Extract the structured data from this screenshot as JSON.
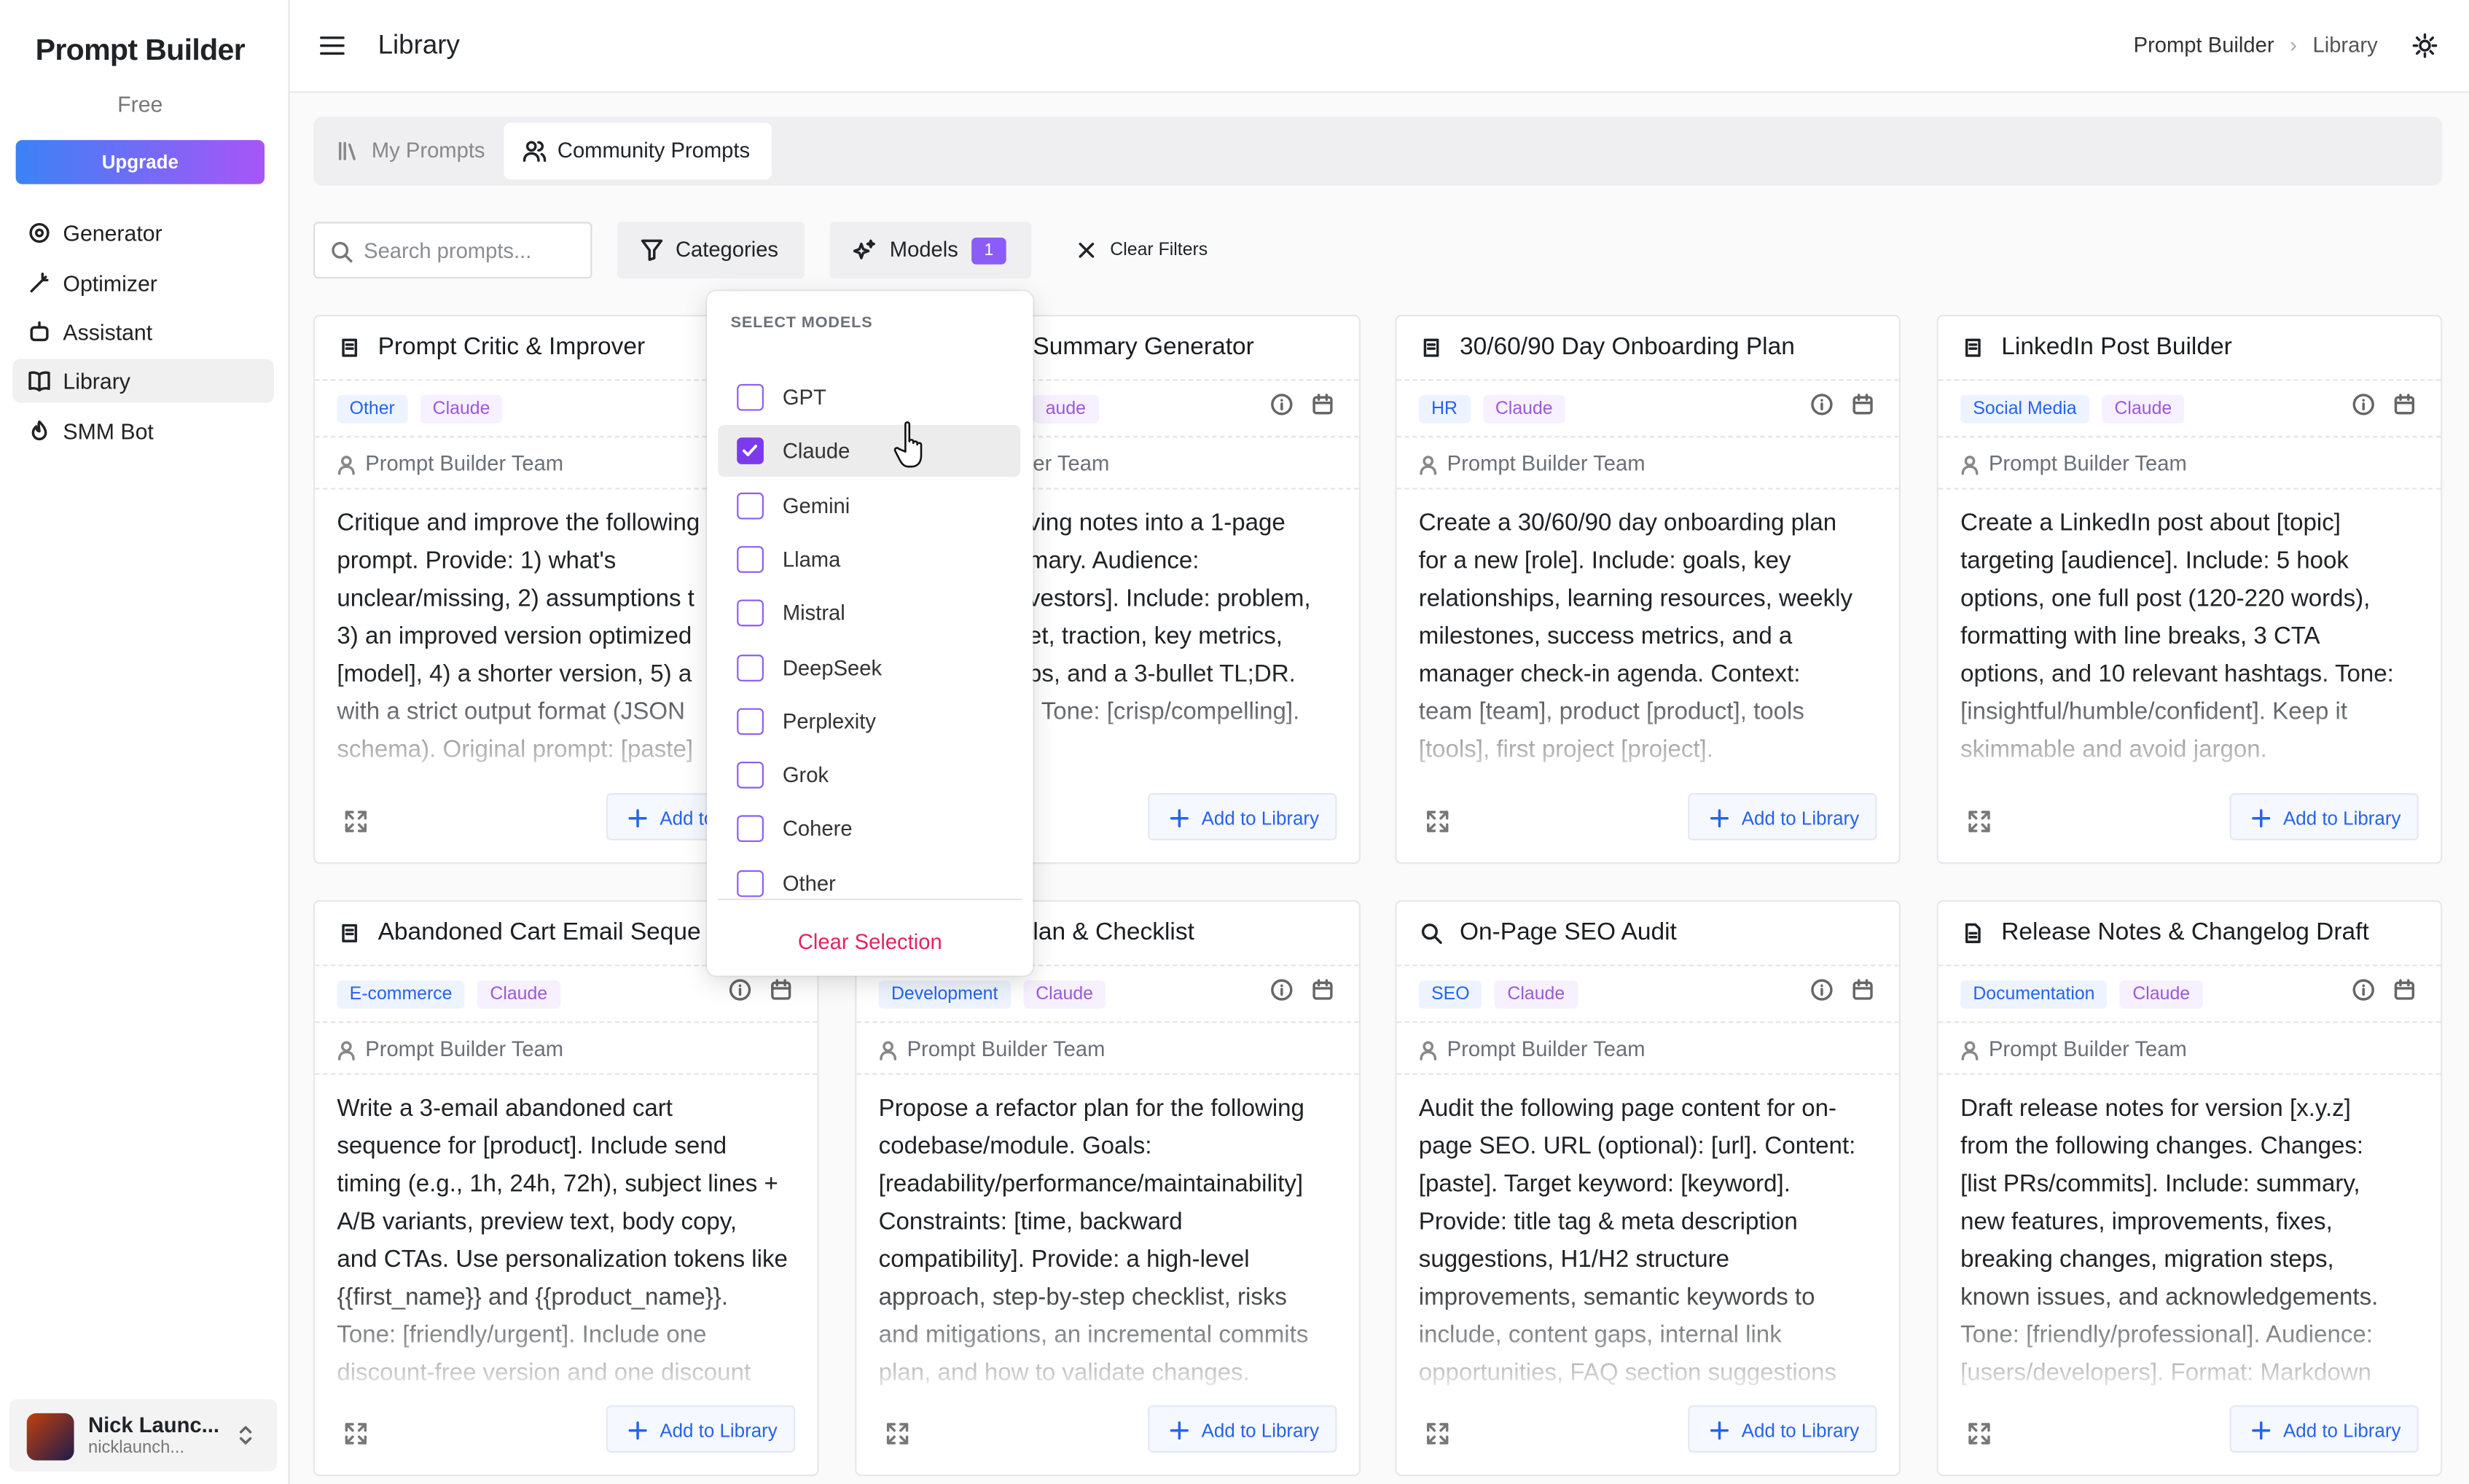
{
  "sidebar": {
    "brand": "Prompt Builder",
    "plan": "Free",
    "upgrade": "Upgrade",
    "nav": [
      "Generator",
      "Optimizer",
      "Assistant",
      "Library",
      "SMM Bot"
    ],
    "user": {
      "name": "Nick Launc...",
      "email": "nicklaunch..."
    }
  },
  "header": {
    "title": "Library",
    "breadcrumb": [
      "Prompt Builder",
      "Library"
    ]
  },
  "tabs": [
    "My Prompts",
    "Community Prompts"
  ],
  "filters": {
    "search_placeholder": "Search prompts...",
    "categories": "Categories",
    "models": "Models",
    "models_count": "1",
    "clear": "Clear Filters"
  },
  "dropdown": {
    "heading": "SELECT MODELS",
    "options": [
      {
        "label": "GPT",
        "checked": false
      },
      {
        "label": "Claude",
        "checked": true
      },
      {
        "label": "Gemini",
        "checked": false
      },
      {
        "label": "Llama",
        "checked": false
      },
      {
        "label": "Mistral",
        "checked": false
      },
      {
        "label": "DeepSeek",
        "checked": false
      },
      {
        "label": "Perplexity",
        "checked": false
      },
      {
        "label": "Grok",
        "checked": false
      },
      {
        "label": "Cohere",
        "checked": false
      },
      {
        "label": "Other",
        "checked": false
      }
    ],
    "clear": "Clear Selection"
  },
  "card_action": "Add to Library",
  "cards": [
    {
      "title": "Prompt Critic & Improver",
      "tags": [
        "Other",
        "Claude"
      ],
      "author": "Prompt Builder Team",
      "body": "Critique and improve the following\nprompt. Provide: 1) what's\nunclear/missing, 2) assumptions t\n3) an improved version optimized\n[model], 4) a shorter version, 5) a\nwith a strict output format (JSON\nschema). Original prompt: [paste]"
    },
    {
      "title": "Summary Generator",
      "tags": [
        "aude"
      ],
      "author": "er Team",
      "body": "ving notes into a 1-page\nmary. Audience:\nvestors]. Include: problem,\net, traction, key metrics,\nps, and a 3-bullet TL;DR.\n. Tone: [crisp/compelling]."
    },
    {
      "title": "30/60/90 Day Onboarding Plan",
      "tags": [
        "HR",
        "Claude"
      ],
      "author": "Prompt Builder Team",
      "body": "Create a 30/60/90 day onboarding plan\nfor a new [role]. Include: goals, key\nrelationships, learning resources, weekly\nmilestones, success metrics, and a\nmanager check-in agenda. Context:\nteam [team], product [product], tools\n[tools], first project [project]."
    },
    {
      "title": "LinkedIn Post Builder",
      "tags": [
        "Social Media",
        "Claude"
      ],
      "author": "Prompt Builder Team",
      "body": "Create a LinkedIn post about [topic]\ntargeting [audience]. Include: 5 hook\noptions, one full post (120-220 words),\nformatting with line breaks, 3 CTA\noptions, and 10 relevant hashtags. Tone:\n[insightful/humble/confident]. Keep it\nskimmable and avoid jargon."
    },
    {
      "title": "Abandoned Cart Email Seque",
      "tags": [
        "E-commerce",
        "Claude"
      ],
      "author": "Prompt Builder Team",
      "body": "Write a 3-email abandoned cart\nsequence for [product]. Include send\ntiming (e.g., 1h, 24h, 72h), subject lines +\nA/B variants, preview text, body copy,\nand CTAs. Use personalization tokens like\n{{first_name}} and {{product_name}}.\nTone: [friendly/urgent]. Include one\ndiscount-free version and one discount"
    },
    {
      "title": "lan & Checklist",
      "tags": [
        "Development",
        "Claude"
      ],
      "author": "Prompt Builder Team",
      "body": "Propose a refactor plan for the following\ncodebase/module. Goals:\n[readability/performance/maintainability]\nConstraints: [time, backward\ncompatibility]. Provide: a high-level\napproach, step-by-step checklist, risks\nand mitigations, an incremental commits\nplan, and how to validate changes."
    },
    {
      "title": "On-Page SEO Audit",
      "tags": [
        "SEO",
        "Claude"
      ],
      "author": "Prompt Builder Team",
      "body": "Audit the following page content for on-\npage SEO. URL (optional): [url]. Content:\n[paste]. Target keyword: [keyword].\nProvide: title tag & meta description\nsuggestions, H1/H2 structure\nimprovements, semantic keywords to\ninclude, content gaps, internal link\nopportunities, FAQ section suggestions"
    },
    {
      "title": "Release Notes & Changelog Draft",
      "tags": [
        "Documentation",
        "Claude"
      ],
      "author": "Prompt Builder Team",
      "body": "Draft release notes for version [x.y.z]\nfrom the following changes. Changes:\n[list PRs/commits]. Include: summary,\nnew features, improvements, fixes,\nbreaking changes, migration steps,\nknown issues, and acknowledgements.\nTone: [friendly/professional]. Audience:\n[users/developers]. Format: Markdown"
    }
  ]
}
